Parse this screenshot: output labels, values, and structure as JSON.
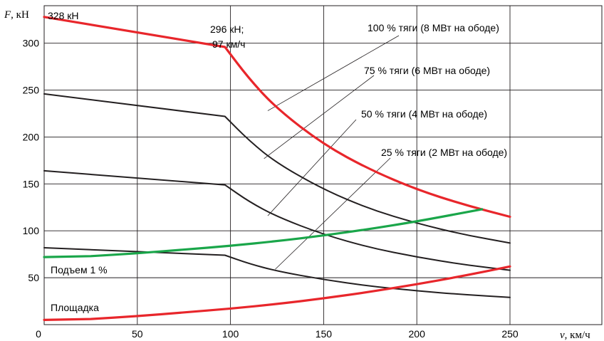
{
  "chart_data": {
    "type": "line",
    "y_axis_symbol": "F",
    "y_axis_unit": ", кН",
    "x_axis_symbol": "v",
    "x_axis_unit": ", км/ч",
    "xlim": [
      0,
      250
    ],
    "ylim": [
      0,
      340
    ],
    "x_ticks": [
      "0",
      "50",
      "100",
      "150",
      "200",
      "250"
    ],
    "y_ticks": [
      "50",
      "100",
      "150",
      "200",
      "250",
      "300"
    ],
    "grid": true,
    "series": [
      {
        "name": "100 % тяги (8 МВт на ободе)",
        "color": "#e8262b",
        "x": [
          0,
          97,
          110,
          125,
          150,
          175,
          200,
          225,
          250
        ],
        "y": [
          328,
          296,
          262,
          230,
          192,
          165,
          144,
          128,
          115
        ]
      },
      {
        "name": "75 % тяги (6 МВт на ободе)",
        "color": "#231f20",
        "x": [
          0,
          97,
          110,
          125,
          150,
          175,
          200,
          225,
          250
        ],
        "y": [
          246,
          222,
          196,
          172,
          144,
          123,
          108,
          96,
          87
        ]
      },
      {
        "name": "50 % тяги (4 МВт на ободе)",
        "color": "#231f20",
        "x": [
          0,
          97,
          110,
          125,
          150,
          175,
          200,
          225,
          250
        ],
        "y": [
          164,
          149,
          131,
          115,
          96,
          82,
          72,
          64,
          58
        ]
      },
      {
        "name": "25 % тяги (2 МВт на ободе)",
        "color": "#231f20",
        "x": [
          0,
          97,
          110,
          125,
          150,
          175,
          200,
          225,
          250
        ],
        "y": [
          82,
          74,
          65,
          57,
          48,
          41,
          36,
          32,
          29
        ]
      },
      {
        "name": "Подъем 1 %",
        "color": "#1aa64a",
        "x": [
          0,
          25,
          50,
          75,
          100,
          125,
          150,
          175,
          200,
          235
        ],
        "y": [
          72,
          73,
          76,
          80,
          84,
          89,
          95,
          102,
          110,
          123
        ]
      },
      {
        "name": "Площадка",
        "color": "#e8262b",
        "x": [
          0,
          25,
          50,
          75,
          100,
          125,
          150,
          175,
          200,
          225,
          250
        ],
        "y": [
          5,
          6,
          9,
          13,
          17,
          22,
          28,
          35,
          43,
          52,
          62
        ]
      }
    ],
    "annotations": [
      {
        "text": "328 кН"
      },
      {
        "text_line1": "296 кН;",
        "text_line2": "97 км/ч"
      }
    ]
  }
}
